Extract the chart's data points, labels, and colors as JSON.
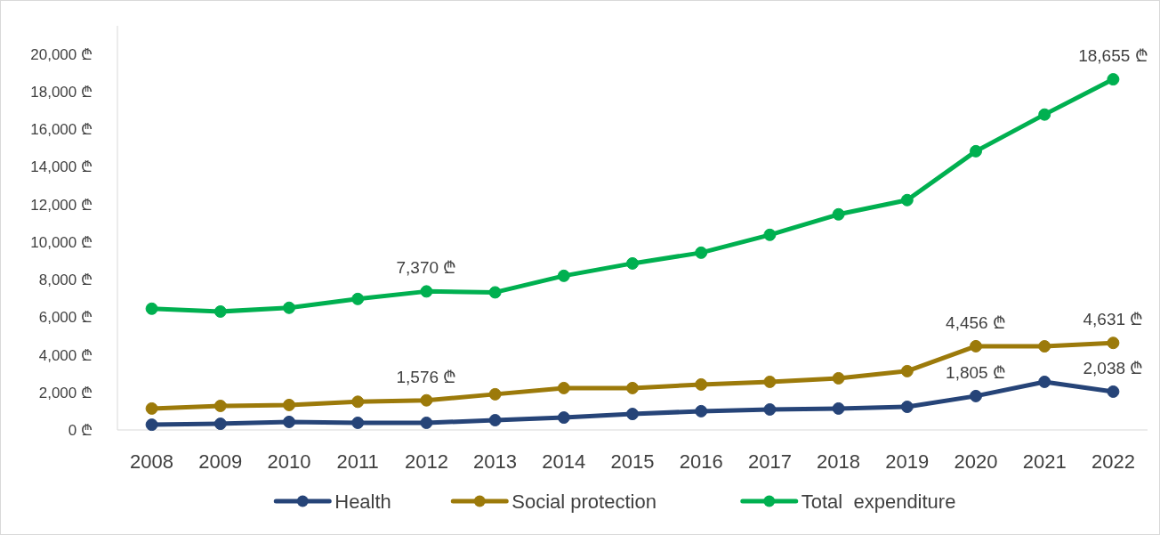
{
  "chart_data": {
    "type": "line",
    "categories": [
      "2008",
      "2009",
      "2010",
      "2011",
      "2012",
      "2013",
      "2014",
      "2015",
      "2016",
      "2017",
      "2018",
      "2019",
      "2020",
      "2021",
      "2022"
    ],
    "series": [
      {
        "name": "Health",
        "color": "#264478",
        "values": [
          280,
          330,
          430,
          380,
          380,
          520,
          660,
          850,
          1000,
          1090,
          1140,
          1230,
          1805,
          2560,
          2038
        ],
        "value_labels": [
          null,
          null,
          null,
          null,
          null,
          null,
          null,
          null,
          null,
          null,
          null,
          null,
          "1,805 ₾",
          null,
          "2,038 ₾"
        ]
      },
      {
        "name": "Social protection",
        "color": "#9c7a0a",
        "values": [
          1140,
          1280,
          1330,
          1500,
          1576,
          1900,
          2230,
          2230,
          2420,
          2560,
          2750,
          3130,
          4456,
          4450,
          4631
        ],
        "value_labels": [
          null,
          null,
          null,
          null,
          "1,576 ₾",
          null,
          null,
          null,
          null,
          null,
          null,
          null,
          "4,456 ₾",
          null,
          "4,631 ₾"
        ]
      },
      {
        "name": "Total  expenditure",
        "color": "#00b050",
        "values": [
          6450,
          6300,
          6500,
          6970,
          7370,
          7320,
          8200,
          8860,
          9430,
          10380,
          11470,
          12230,
          14830,
          16780,
          18655
        ],
        "value_labels": [
          null,
          null,
          null,
          null,
          "7,370 ₾",
          null,
          null,
          null,
          null,
          null,
          null,
          null,
          null,
          null,
          "18,655 ₾"
        ]
      }
    ],
    "ylim": [
      0,
      21500
    ],
    "yticks": [
      {
        "value": 0,
        "label": "0 ₾"
      },
      {
        "value": 2000,
        "label": "2,000 ₾"
      },
      {
        "value": 4000,
        "label": "4,000 ₾"
      },
      {
        "value": 6000,
        "label": "6,000 ₾"
      },
      {
        "value": 8000,
        "label": "8,000 ₾"
      },
      {
        "value": 10000,
        "label": "10,000 ₾"
      },
      {
        "value": 12000,
        "label": "12,000 ₾"
      },
      {
        "value": 14000,
        "label": "14,000 ₾"
      },
      {
        "value": 16000,
        "label": "16,000 ₾"
      },
      {
        "value": 18000,
        "label": "18,000 ₾"
      },
      {
        "value": 20000,
        "label": "20,000 ₾"
      }
    ],
    "grid": false,
    "legend": "bottom",
    "marker": "circle",
    "line_style": "solid"
  }
}
